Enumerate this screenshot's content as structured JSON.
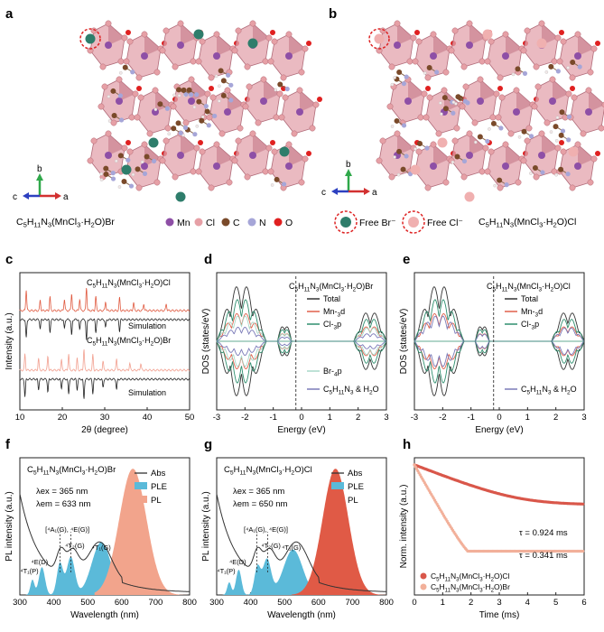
{
  "panels": {
    "a": {
      "letter": "a",
      "formula": "C5H11N3(MnCl3·H2O)Br"
    },
    "b": {
      "letter": "b",
      "formula": "C5H11N3(MnCl3·H2O)Cl"
    },
    "c": {
      "letter": "c"
    },
    "d": {
      "letter": "d"
    },
    "e": {
      "letter": "e"
    },
    "f": {
      "letter": "f"
    },
    "g": {
      "letter": "g"
    },
    "h": {
      "letter": "h"
    }
  },
  "structure_legend": {
    "axes": {
      "b": "b",
      "c": "c",
      "a": "a"
    },
    "atoms": [
      {
        "label": "Mn",
        "color": "#8e4fa6"
      },
      {
        "label": "Cl",
        "color": "#e6a0a6"
      },
      {
        "label": "C",
        "color": "#7a4a2a"
      },
      {
        "label": "N",
        "color": "#a6a6d8"
      },
      {
        "label": "O",
        "color": "#e02020"
      }
    ],
    "free_br": "Free Br⁻",
    "free_cl": "Free Cl⁻",
    "free_br_color": "#2e7d6b",
    "free_cl_color": "#f0b0b0"
  },
  "chart_data": [
    {
      "id": "c",
      "type": "line",
      "xlabel": "2θ (degree)",
      "ylabel": "Intensity (a.u.)",
      "xlim": [
        10,
        50
      ],
      "xticks": [
        10,
        20,
        30,
        40,
        50
      ],
      "series": [
        {
          "name": "C5H11N3(MnCl3·H2O)Cl",
          "color": "#e05a40",
          "peaks": [
            [
              11.5,
              0.9
            ],
            [
              14.8,
              0.45
            ],
            [
              17.1,
              0.6
            ],
            [
              20.5,
              0.5
            ],
            [
              22.2,
              0.75
            ],
            [
              24.1,
              0.5
            ],
            [
              25.7,
              1.0
            ],
            [
              27.9,
              0.6
            ],
            [
              30.2,
              0.4
            ],
            [
              33.5,
              0.55
            ],
            [
              36.8,
              0.35
            ],
            [
              39.2,
              0.3
            ],
            [
              44.5,
              0.3
            ]
          ]
        },
        {
          "name": "Simulation",
          "color": "#222222",
          "peaks": [
            [
              11.5,
              0.8
            ],
            [
              14.8,
              0.4
            ],
            [
              17.1,
              0.55
            ],
            [
              20.5,
              0.4
            ],
            [
              22.2,
              0.7
            ],
            [
              24.1,
              0.45
            ],
            [
              25.7,
              0.9
            ],
            [
              27.9,
              0.55
            ],
            [
              30.2,
              0.35
            ],
            [
              33.5,
              0.5
            ]
          ]
        },
        {
          "name": "C5H11N3(MnCl3·H2O)Br",
          "color": "#f2a090",
          "peaks": [
            [
              11.2,
              0.7
            ],
            [
              14.4,
              0.5
            ],
            [
              16.6,
              0.6
            ],
            [
              19.8,
              0.45
            ],
            [
              21.5,
              0.7
            ],
            [
              23.5,
              0.5
            ],
            [
              25.1,
              0.9
            ],
            [
              27.2,
              0.65
            ],
            [
              29.6,
              0.4
            ],
            [
              32.8,
              0.5
            ],
            [
              35.9,
              0.3
            ],
            [
              38.5,
              0.3
            ]
          ]
        },
        {
          "name": "Simulation",
          "color": "#222222",
          "peaks": [
            [
              11.2,
              0.75
            ],
            [
              14.4,
              0.45
            ],
            [
              16.6,
              0.55
            ],
            [
              19.8,
              0.4
            ],
            [
              21.5,
              0.65
            ],
            [
              23.5,
              0.45
            ],
            [
              25.1,
              0.85
            ],
            [
              27.2,
              0.6
            ],
            [
              29.6,
              0.35
            ],
            [
              32.8,
              0.45
            ]
          ]
        }
      ]
    },
    {
      "id": "d",
      "type": "area",
      "title": "C5H11N3(MnCl3·H2O)Br",
      "xlabel": "Energy (eV)",
      "ylabel": "DOS (states/eV)",
      "xlim": [
        -3,
        3
      ],
      "xticks": [
        -3,
        -2,
        -1,
        0,
        1,
        2,
        3
      ],
      "fermi": -0.2,
      "series": [
        {
          "name": "Total",
          "color": "#333333"
        },
        {
          "name": "Mn-3d",
          "color": "#e0604a"
        },
        {
          "name": "Cl-3p",
          "color": "#2f8f6f"
        },
        {
          "name": "Br-4p",
          "color": "#a9d8c8"
        },
        {
          "name": "C5H11N3 & H2O",
          "color": "#7a7ab8"
        }
      ],
      "bands": [
        {
          "x": [
            -3.0,
            -1.25
          ],
          "scale": 1.0
        },
        {
          "x": [
            -0.85,
            -0.35
          ],
          "scale": 0.35
        },
        {
          "x": [
            1.85,
            3.0
          ],
          "scale": 0.55
        }
      ]
    },
    {
      "id": "e",
      "type": "area",
      "title": "C5H11N3(MnCl3·H2O)Cl",
      "xlabel": "Energy (eV)",
      "ylabel": "DOS (states/eV)",
      "xlim": [
        -3,
        3
      ],
      "xticks": [
        -3,
        -2,
        -1,
        0,
        1,
        2,
        3
      ],
      "fermi": -0.2,
      "series": [
        {
          "name": "Total",
          "color": "#333333"
        },
        {
          "name": "Mn-3d",
          "color": "#e0604a"
        },
        {
          "name": "Cl-3p",
          "color": "#2f8f6f"
        },
        {
          "name": "C5H11N3 & H2O",
          "color": "#7a7ab8"
        }
      ],
      "bands": [
        {
          "x": [
            -3.0,
            -1.25
          ],
          "scale": 1.0
        },
        {
          "x": [
            -0.85,
            -0.35
          ],
          "scale": 0.35
        },
        {
          "x": [
            1.85,
            3.0
          ],
          "scale": 0.55
        }
      ]
    },
    {
      "id": "f",
      "type": "area",
      "title": "C5H11N3(MnCl3·H2O)Br",
      "xlabel": "Wavelength (nm)",
      "ylabel": "PL intensity (a.u.)",
      "xlim": [
        300,
        800
      ],
      "xticks": [
        300,
        400,
        500,
        600,
        700,
        800
      ],
      "lambda_ex": "λex = 365 nm",
      "lambda_em": "λem = 633 nm",
      "series": [
        {
          "name": "Abs",
          "color": "#333333"
        },
        {
          "name": "PLE",
          "color": "#5bbad9"
        },
        {
          "name": "PL",
          "color": "#f2a48c"
        }
      ],
      "pl_peak": 633,
      "pl_width": 40,
      "ple_peaks": [
        [
          337,
          0.12,
          6
        ],
        [
          365,
          0.22,
          9
        ],
        [
          418,
          0.25,
          9
        ],
        [
          450,
          0.3,
          12
        ],
        [
          540,
          0.42,
          28
        ]
      ],
      "annotations": [
        {
          "text": "⁴T₁(P)",
          "x": 328
        },
        {
          "text": "⁴E(D)",
          "x": 358
        },
        {
          "text": "[⁴A₁(G), ⁴E(G)]",
          "x": 440
        },
        {
          "text": "⁴T₂(G)",
          "x": 462
        },
        {
          "text": "⁴T₁(G)",
          "x": 540
        }
      ]
    },
    {
      "id": "g",
      "type": "area",
      "title": "C5H11N3(MnCl3·H2O)Cl",
      "xlabel": "Wavelength (nm)",
      "ylabel": "PL intensity (a.u.)",
      "xlim": [
        300,
        800
      ],
      "xticks": [
        300,
        400,
        500,
        600,
        700,
        800
      ],
      "lambda_ex": "λex = 365 nm",
      "lambda_em": "λem = 650 nm",
      "series": [
        {
          "name": "Abs",
          "color": "#333333"
        },
        {
          "name": "PLE",
          "color": "#5bbad9"
        },
        {
          "name": "PL",
          "color": "#e05a46"
        }
      ],
      "pl_peak": 650,
      "pl_width": 38,
      "ple_peaks": [
        [
          337,
          0.1,
          6
        ],
        [
          365,
          0.2,
          8
        ],
        [
          420,
          0.22,
          9
        ],
        [
          448,
          0.28,
          12
        ],
        [
          525,
          0.36,
          28
        ]
      ],
      "annotations": [
        {
          "text": "⁴T₁(P)",
          "x": 328
        },
        {
          "text": "⁴E(D)",
          "x": 362
        },
        {
          "text": "[⁴A₁(G), ⁴E(G)]",
          "x": 445
        },
        {
          "text": "⁴T₂(G)",
          "x": 460
        },
        {
          "text": "⁴T₁(G)",
          "x": 520
        }
      ]
    },
    {
      "id": "h",
      "type": "scatter",
      "xlabel": "Time (ms)",
      "ylabel": "Norm. intensity (a.u.)",
      "xlim": [
        0,
        6
      ],
      "xticks": [
        0,
        1,
        2,
        3,
        4,
        5,
        6
      ],
      "ylog": true,
      "series": [
        {
          "name": "C5H11N3(MnCl3·H2O)Cl",
          "color": "#d9574a",
          "tau": 0.924
        },
        {
          "name": "C5H11N3(MnCl3·H2O)Br",
          "color": "#f2b09a",
          "tau": 0.341
        }
      ],
      "tau_labels": [
        "τ = 0.924 ms",
        "τ = 0.341 ms"
      ]
    }
  ]
}
